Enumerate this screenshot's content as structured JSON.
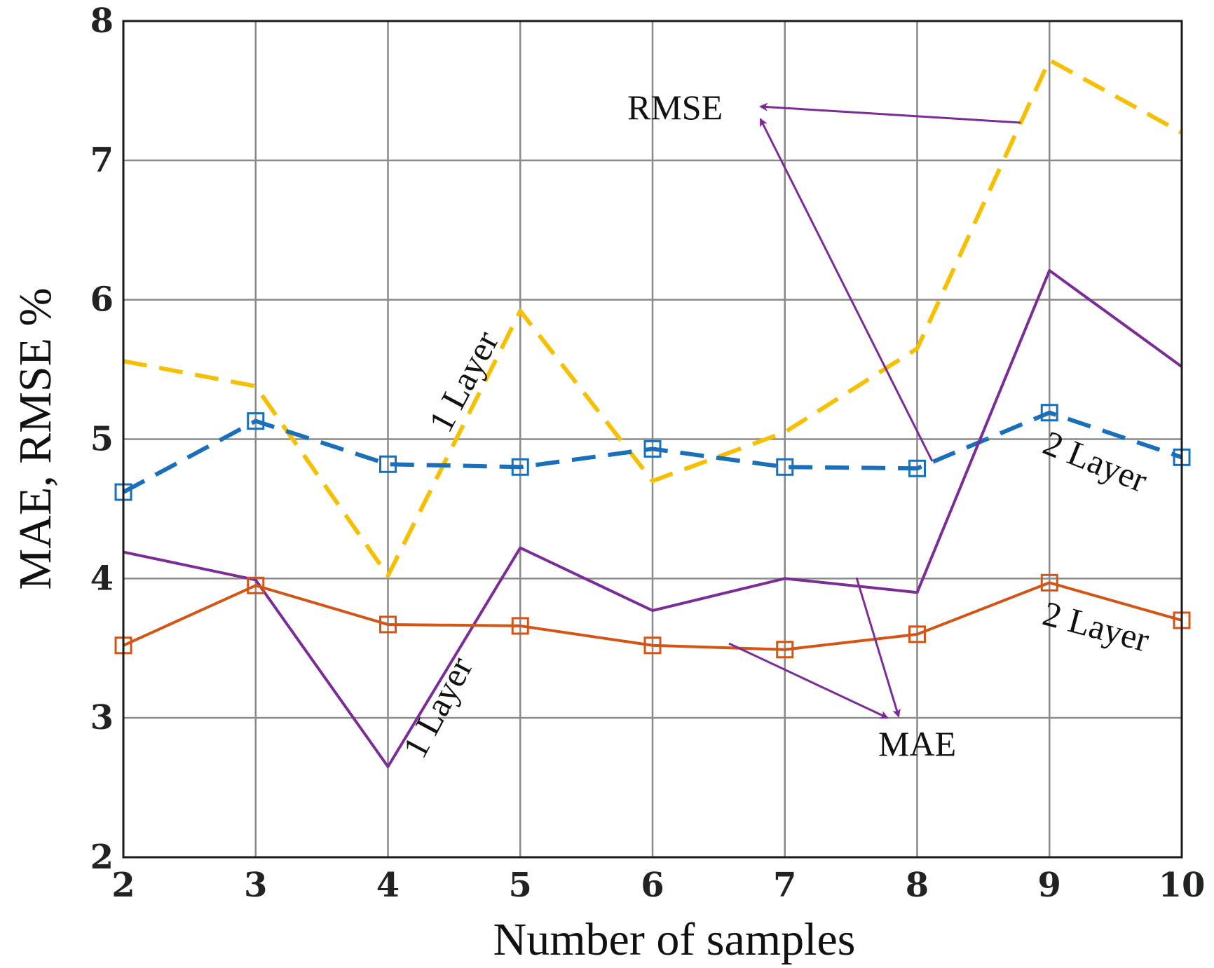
{
  "chart_data": {
    "type": "line",
    "title": "",
    "xlabel": "Number of samples",
    "ylabel": "MAE, RMSE %",
    "x": [
      2,
      3,
      4,
      5,
      6,
      7,
      8,
      9,
      10
    ],
    "xlim": [
      2,
      10
    ],
    "ylim": [
      2,
      8
    ],
    "xticks": [
      "2",
      "3",
      "4",
      "5",
      "6",
      "7",
      "8",
      "9",
      "10"
    ],
    "yticks": [
      "2",
      "3",
      "4",
      "5",
      "6",
      "7",
      "8"
    ],
    "grid": true,
    "series": [
      {
        "name": "RMSE 1 Layer",
        "values": [
          5.56,
          5.38,
          4.02,
          5.92,
          4.7,
          5.05,
          5.65,
          7.72,
          7.2
        ],
        "color": "#f6c000",
        "dash": true,
        "marker": false
      },
      {
        "name": "RMSE 2 Layer",
        "values": [
          4.62,
          5.13,
          4.82,
          4.8,
          4.93,
          4.8,
          4.79,
          5.19,
          4.87
        ],
        "color": "#1a6fba",
        "dash": true,
        "marker": true
      },
      {
        "name": "MAE 1 Layer",
        "values": [
          4.19,
          3.99,
          2.65,
          4.22,
          3.77,
          4.0,
          3.9,
          6.21,
          5.52
        ],
        "color": "#7b2c96",
        "dash": false,
        "marker": false
      },
      {
        "name": "MAE 2 Layer",
        "values": [
          3.52,
          3.95,
          3.67,
          3.66,
          3.52,
          3.49,
          3.6,
          3.97,
          3.7
        ],
        "color": "#d45415",
        "dash": false,
        "marker": true
      }
    ],
    "annotations": [
      {
        "id": "rmse",
        "text": "RMSE"
      },
      {
        "id": "mae",
        "text": "MAE"
      },
      {
        "id": "rmse-1layer",
        "text": "1 Layer"
      },
      {
        "id": "rmse-2layer",
        "text": "2 Layer"
      },
      {
        "id": "mae-1layer",
        "text": "1 Layer"
      },
      {
        "id": "mae-2layer",
        "text": "2 Layer"
      }
    ]
  }
}
